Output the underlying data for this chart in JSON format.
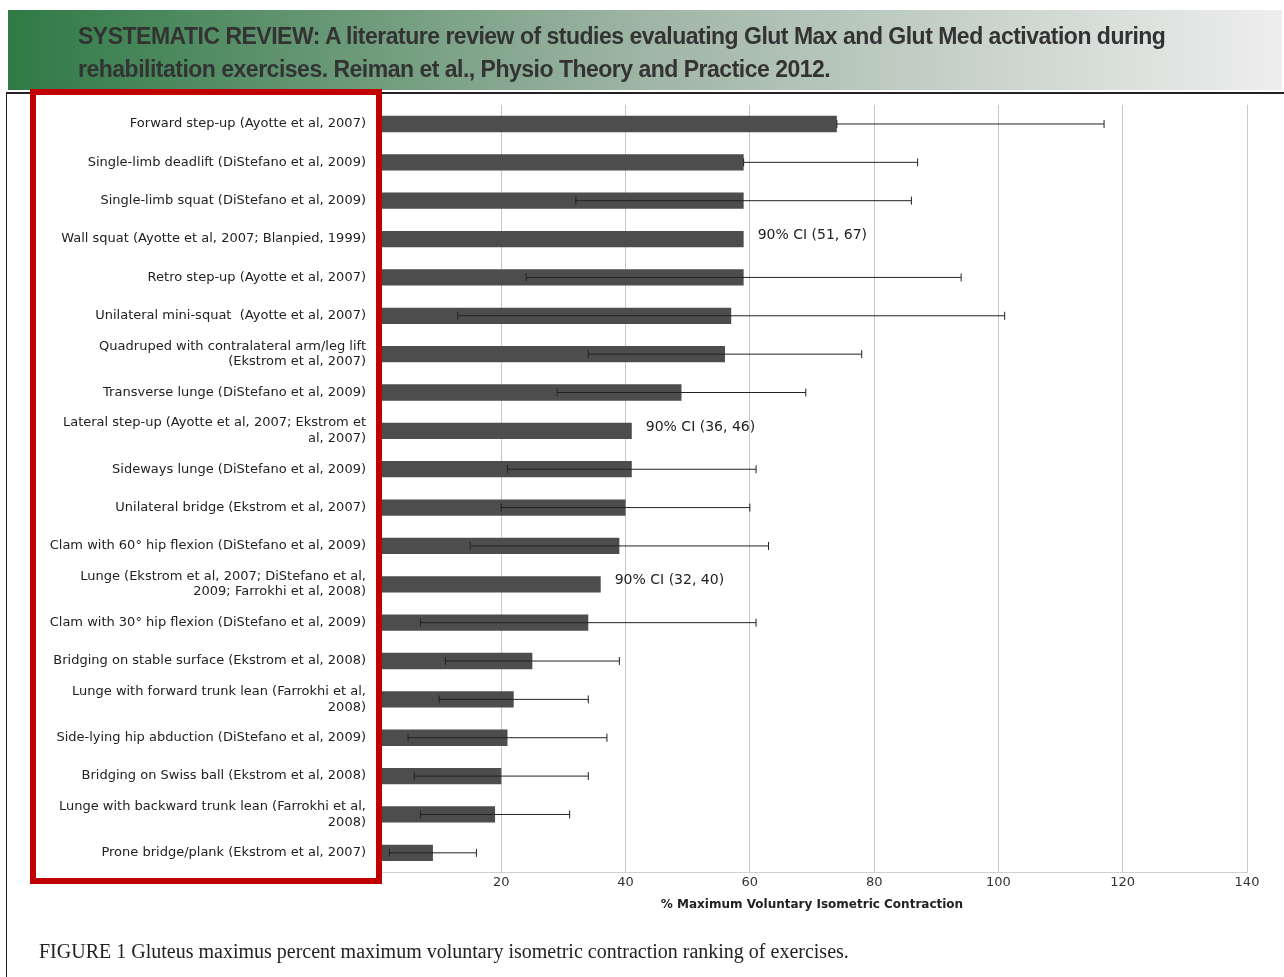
{
  "chart_data": {
    "type": "bar",
    "orientation": "horizontal",
    "title": "SYSTEMATIC REVIEW: A literature review of studies evaluating Glut Max and Glut Med activation during rehabilitation exercises. Reiman et al., Physio Theory and Practice 2012.",
    "xlabel": "% Maximum Voluntary Isometric Contraction",
    "categories": [
      "Forward step-up (Ayotte et al, 2007)",
      "Single-limb deadlift (DiStefano et al, 2009)",
      "Single-limb squat (DiStefano et al, 2009)",
      "Wall squat (Ayotte et al, 2007; Blanpied, 1999)",
      "Retro step-up (Ayotte et al, 2007)",
      "Unilateral mini-squat  (Ayotte et al, 2007)",
      "Quadruped with contralateral arm/leg lift (Ekstrom et al, 2007)",
      "Transverse lunge (DiStefano et al, 2009)",
      "Lateral step-up (Ayotte et al, 2007; Ekstrom et al, 2007)",
      "Sideways lunge (DiStefano et al, 2009)",
      "Unilateral bridge (Ekstrom et al, 2007)",
      "Clam with 60° hip flexion (DiStefano et al, 2009)",
      "Lunge (Ekstrom et al, 2007; DiStefano et al, 2009; Farrokhi et al, 2008)",
      "Clam with 30° hip flexion (DiStefano et al, 2009)",
      "Bridging on stable surface (Ekstrom et al, 2008)",
      "Lunge with forward trunk lean (Farrokhi et al, 2008)",
      "Side-lying hip abduction (DiStefano et al, 2009)",
      "Bridging on Swiss ball (Ekstrom et al, 2008)",
      "Lunge with backward trunk lean (Farrokhi et al, 2008)",
      "Prone bridge/plank (Ekstrom et al, 2007)"
    ],
    "values": [
      74,
      59,
      59,
      59,
      59,
      57,
      56,
      49,
      41,
      41,
      40,
      39,
      36,
      34,
      25,
      22,
      21,
      20,
      19,
      9
    ],
    "errors": [
      [
        74,
        117
      ],
      [
        59,
        87
      ],
      [
        32,
        86
      ],
      null,
      [
        24,
        94
      ],
      [
        13,
        101
      ],
      [
        34,
        78
      ],
      [
        29,
        69
      ],
      null,
      [
        21,
        61
      ],
      [
        20,
        60
      ],
      [
        15,
        63
      ],
      null,
      [
        7,
        61
      ],
      [
        11,
        39
      ],
      [
        10,
        34
      ],
      [
        5,
        37
      ],
      [
        6,
        34
      ],
      [
        7,
        31
      ],
      [
        2,
        16
      ]
    ],
    "color": "#4d4d4d",
    "xlim": [
      0,
      140
    ],
    "xticks": [
      20,
      40,
      60,
      80,
      100,
      120,
      140
    ],
    "grid": "x",
    "annotations": [
      {
        "text": "90% CI (51, 67)",
        "x": 59,
        "y": "Wall squat (Ayotte et al, 2007; Blanpied, 1999)"
      },
      {
        "text": "90% CI (36, 46)",
        "x": 41,
        "y": "Lateral step-up (Ayotte et al, 2007; Ekstrom et al, 2007)"
      },
      {
        "text": "90% CI (32, 40)",
        "x": 36,
        "y": "Lunge (Ekstrom et al, 2007; DiStefano et al, 2009; Farrokhi et al, 2008)"
      },
      "FIGURE 1    Gluteus maximus percent maximum voluntary isometric contraction ranking of exercises."
    ]
  }
}
